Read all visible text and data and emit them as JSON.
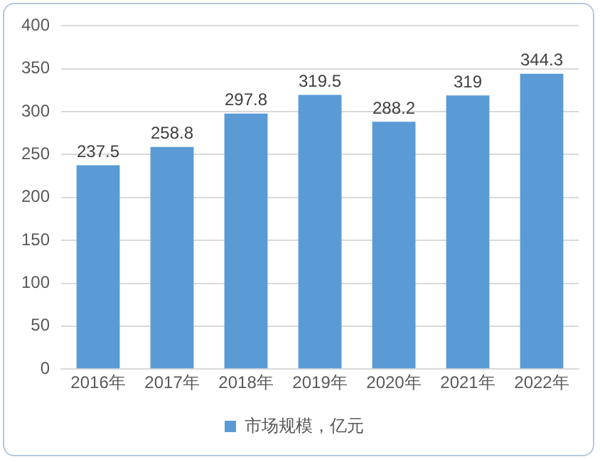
{
  "chart_data": {
    "type": "bar",
    "categories": [
      "2016年",
      "2017年",
      "2018年",
      "2019年",
      "2020年",
      "2021年",
      "2022年"
    ],
    "series": [
      {
        "name": "市场规模，亿元",
        "color": "#5b9bd5",
        "values": [
          237.5,
          258.8,
          297.8,
          319.5,
          288.2,
          319,
          344.3
        ]
      }
    ],
    "ylim": [
      0,
      400
    ],
    "yticks": [
      0,
      50,
      100,
      150,
      200,
      250,
      300,
      350,
      400
    ],
    "grid": "y",
    "legend": "bottom",
    "data_labels": true
  }
}
